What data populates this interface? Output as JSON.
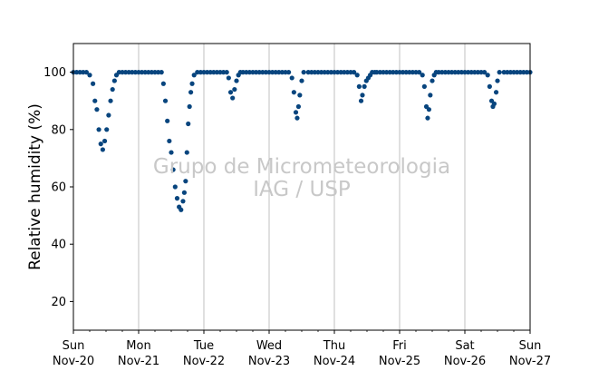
{
  "chart_data": {
    "type": "scatter",
    "title": "",
    "xlabel": "",
    "ylabel": "Relative humidity (%)",
    "ylim": [
      10,
      110
    ],
    "xlim_days": [
      0,
      7
    ],
    "yticks": [
      20,
      40,
      60,
      80,
      100
    ],
    "xticks": [
      {
        "day": 0,
        "line1": "Sun",
        "line2": "Nov-20"
      },
      {
        "day": 1,
        "line1": "Mon",
        "line2": "Nov-21"
      },
      {
        "day": 2,
        "line1": "Tue",
        "line2": "Nov-22"
      },
      {
        "day": 3,
        "line1": "Wed",
        "line2": "Nov-23"
      },
      {
        "day": 4,
        "line1": "Thu",
        "line2": "Nov-24"
      },
      {
        "day": 5,
        "line1": "Fri",
        "line2": "Nov-25"
      },
      {
        "day": 6,
        "line1": "Sat",
        "line2": "Nov-26"
      },
      {
        "day": 7,
        "line1": "Sun",
        "line2": "Nov-27"
      }
    ],
    "grid": "vertical",
    "marker_color": "#08457e",
    "series": [
      {
        "name": "",
        "points": [
          [
            0.0,
            100
          ],
          [
            0.05,
            100
          ],
          [
            0.1,
            100
          ],
          [
            0.15,
            100
          ],
          [
            0.2,
            100
          ],
          [
            0.25,
            99
          ],
          [
            0.3,
            96
          ],
          [
            0.33,
            90
          ],
          [
            0.36,
            87
          ],
          [
            0.39,
            80
          ],
          [
            0.42,
            75
          ],
          [
            0.45,
            73
          ],
          [
            0.48,
            76
          ],
          [
            0.51,
            80
          ],
          [
            0.54,
            85
          ],
          [
            0.57,
            90
          ],
          [
            0.6,
            94
          ],
          [
            0.63,
            97
          ],
          [
            0.66,
            99
          ],
          [
            0.7,
            100
          ],
          [
            0.75,
            100
          ],
          [
            0.8,
            100
          ],
          [
            0.85,
            100
          ],
          [
            0.9,
            100
          ],
          [
            0.95,
            100
          ],
          [
            1.0,
            100
          ],
          [
            1.05,
            100
          ],
          [
            1.1,
            100
          ],
          [
            1.15,
            100
          ],
          [
            1.2,
            100
          ],
          [
            1.25,
            100
          ],
          [
            1.3,
            100
          ],
          [
            1.35,
            100
          ],
          [
            1.38,
            96
          ],
          [
            1.41,
            90
          ],
          [
            1.44,
            83
          ],
          [
            1.47,
            76
          ],
          [
            1.5,
            72
          ],
          [
            1.53,
            66
          ],
          [
            1.56,
            60
          ],
          [
            1.59,
            56
          ],
          [
            1.62,
            53
          ],
          [
            1.65,
            52
          ],
          [
            1.68,
            55
          ],
          [
            1.7,
            58
          ],
          [
            1.72,
            62
          ],
          [
            1.74,
            72
          ],
          [
            1.76,
            82
          ],
          [
            1.78,
            88
          ],
          [
            1.8,
            93
          ],
          [
            1.82,
            96
          ],
          [
            1.85,
            99
          ],
          [
            1.9,
            100
          ],
          [
            1.95,
            100
          ],
          [
            2.0,
            100
          ],
          [
            2.05,
            100
          ],
          [
            2.1,
            100
          ],
          [
            2.15,
            100
          ],
          [
            2.2,
            100
          ],
          [
            2.25,
            100
          ],
          [
            2.3,
            100
          ],
          [
            2.35,
            100
          ],
          [
            2.38,
            98
          ],
          [
            2.41,
            93
          ],
          [
            2.44,
            91
          ],
          [
            2.47,
            94
          ],
          [
            2.5,
            97
          ],
          [
            2.53,
            99
          ],
          [
            2.56,
            100
          ],
          [
            2.6,
            100
          ],
          [
            2.65,
            100
          ],
          [
            2.7,
            100
          ],
          [
            2.75,
            100
          ],
          [
            2.8,
            100
          ],
          [
            2.85,
            100
          ],
          [
            2.9,
            100
          ],
          [
            2.95,
            100
          ],
          [
            3.0,
            100
          ],
          [
            3.05,
            100
          ],
          [
            3.1,
            100
          ],
          [
            3.15,
            100
          ],
          [
            3.2,
            100
          ],
          [
            3.25,
            100
          ],
          [
            3.3,
            100
          ],
          [
            3.35,
            98
          ],
          [
            3.38,
            93
          ],
          [
            3.41,
            86
          ],
          [
            3.43,
            84
          ],
          [
            3.45,
            88
          ],
          [
            3.47,
            92
          ],
          [
            3.5,
            97
          ],
          [
            3.53,
            100
          ],
          [
            3.6,
            100
          ],
          [
            3.65,
            100
          ],
          [
            3.7,
            100
          ],
          [
            3.75,
            100
          ],
          [
            3.8,
            100
          ],
          [
            3.85,
            100
          ],
          [
            3.9,
            100
          ],
          [
            3.95,
            100
          ],
          [
            4.0,
            100
          ],
          [
            4.05,
            100
          ],
          [
            4.1,
            100
          ],
          [
            4.15,
            100
          ],
          [
            4.2,
            100
          ],
          [
            4.25,
            100
          ],
          [
            4.3,
            100
          ],
          [
            4.35,
            99
          ],
          [
            4.38,
            95
          ],
          [
            4.41,
            90
          ],
          [
            4.43,
            92
          ],
          [
            4.46,
            95
          ],
          [
            4.49,
            97
          ],
          [
            4.52,
            98
          ],
          [
            4.55,
            99
          ],
          [
            4.58,
            100
          ],
          [
            4.62,
            100
          ],
          [
            4.65,
            100
          ],
          [
            4.7,
            100
          ],
          [
            4.75,
            100
          ],
          [
            4.8,
            100
          ],
          [
            4.85,
            100
          ],
          [
            4.9,
            100
          ],
          [
            4.95,
            100
          ],
          [
            5.0,
            100
          ],
          [
            5.05,
            100
          ],
          [
            5.1,
            100
          ],
          [
            5.15,
            100
          ],
          [
            5.2,
            100
          ],
          [
            5.25,
            100
          ],
          [
            5.3,
            100
          ],
          [
            5.35,
            99
          ],
          [
            5.38,
            95
          ],
          [
            5.41,
            88
          ],
          [
            5.43,
            84
          ],
          [
            5.45,
            87
          ],
          [
            5.47,
            92
          ],
          [
            5.5,
            97
          ],
          [
            5.53,
            99
          ],
          [
            5.56,
            100
          ],
          [
            5.6,
            100
          ],
          [
            5.65,
            100
          ],
          [
            5.7,
            100
          ],
          [
            5.75,
            100
          ],
          [
            5.8,
            100
          ],
          [
            5.85,
            100
          ],
          [
            5.9,
            100
          ],
          [
            5.95,
            100
          ],
          [
            6.0,
            100
          ],
          [
            6.05,
            100
          ],
          [
            6.1,
            100
          ],
          [
            6.15,
            100
          ],
          [
            6.2,
            100
          ],
          [
            6.25,
            100
          ],
          [
            6.3,
            100
          ],
          [
            6.35,
            99
          ],
          [
            6.38,
            95
          ],
          [
            6.41,
            90
          ],
          [
            6.43,
            88
          ],
          [
            6.45,
            89
          ],
          [
            6.48,
            93
          ],
          [
            6.5,
            97
          ],
          [
            6.53,
            100
          ],
          [
            6.6,
            100
          ],
          [
            6.65,
            100
          ],
          [
            6.7,
            100
          ],
          [
            6.75,
            100
          ],
          [
            6.8,
            100
          ],
          [
            6.85,
            100
          ],
          [
            6.9,
            100
          ],
          [
            6.95,
            100
          ],
          [
            7.0,
            100
          ]
        ]
      }
    ],
    "watermark_lines": [
      "Grupo de Micrometeorologia",
      "IAG / USP"
    ]
  }
}
